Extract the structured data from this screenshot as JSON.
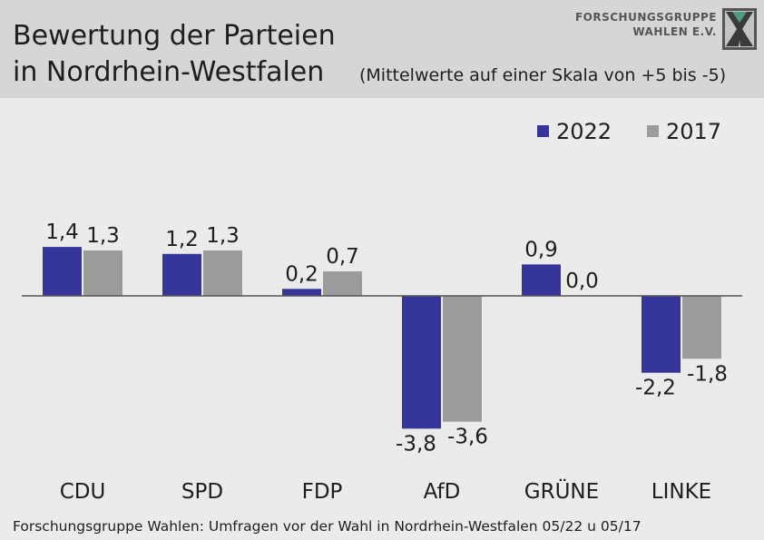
{
  "header": {
    "title_line1": "Bewertung der Parteien",
    "title_line2": "in Nordrhein-Westfalen",
    "subtitle": "(Mittelwerte auf einer Skala von +5 bis -5)",
    "logo_line1": "FORSCHUNGSGRUPPE",
    "logo_line2": "WAHLEN E.V."
  },
  "footer": {
    "source": "Forschungsgruppe Wahlen: Umfragen vor der Wahl in Nordrhein-Westfalen 05/22 u 05/17"
  },
  "colors": {
    "series_2022": "#35359a",
    "series_2017": "#9b9b9b",
    "header_bg": "#d6d6d6",
    "background": "#ebebeb"
  },
  "chart_data": {
    "type": "bar",
    "title": "Bewertung der Parteien in Nordrhein-Westfalen",
    "subtitle": "(Mittelwerte auf einer Skala von +5 bis -5)",
    "categories": [
      "CDU",
      "SPD",
      "FDP",
      "AfD",
      "GRÜNE",
      "LINKE"
    ],
    "series": [
      {
        "name": "2022",
        "values": [
          1.4,
          1.2,
          0.2,
          -3.8,
          0.9,
          -2.2
        ],
        "labels": [
          "1,4",
          "1,2",
          "0,2",
          "-3,8",
          "0,9",
          "-2,2"
        ]
      },
      {
        "name": "2017",
        "values": [
          1.3,
          1.3,
          0.7,
          -3.6,
          0.0,
          -1.8
        ],
        "labels": [
          "1,3",
          "1,3",
          "0,7",
          "-3,6",
          "0,0",
          "-1,8"
        ]
      }
    ],
    "legend_position": "top-right",
    "grid": false,
    "baseline": 0
  }
}
